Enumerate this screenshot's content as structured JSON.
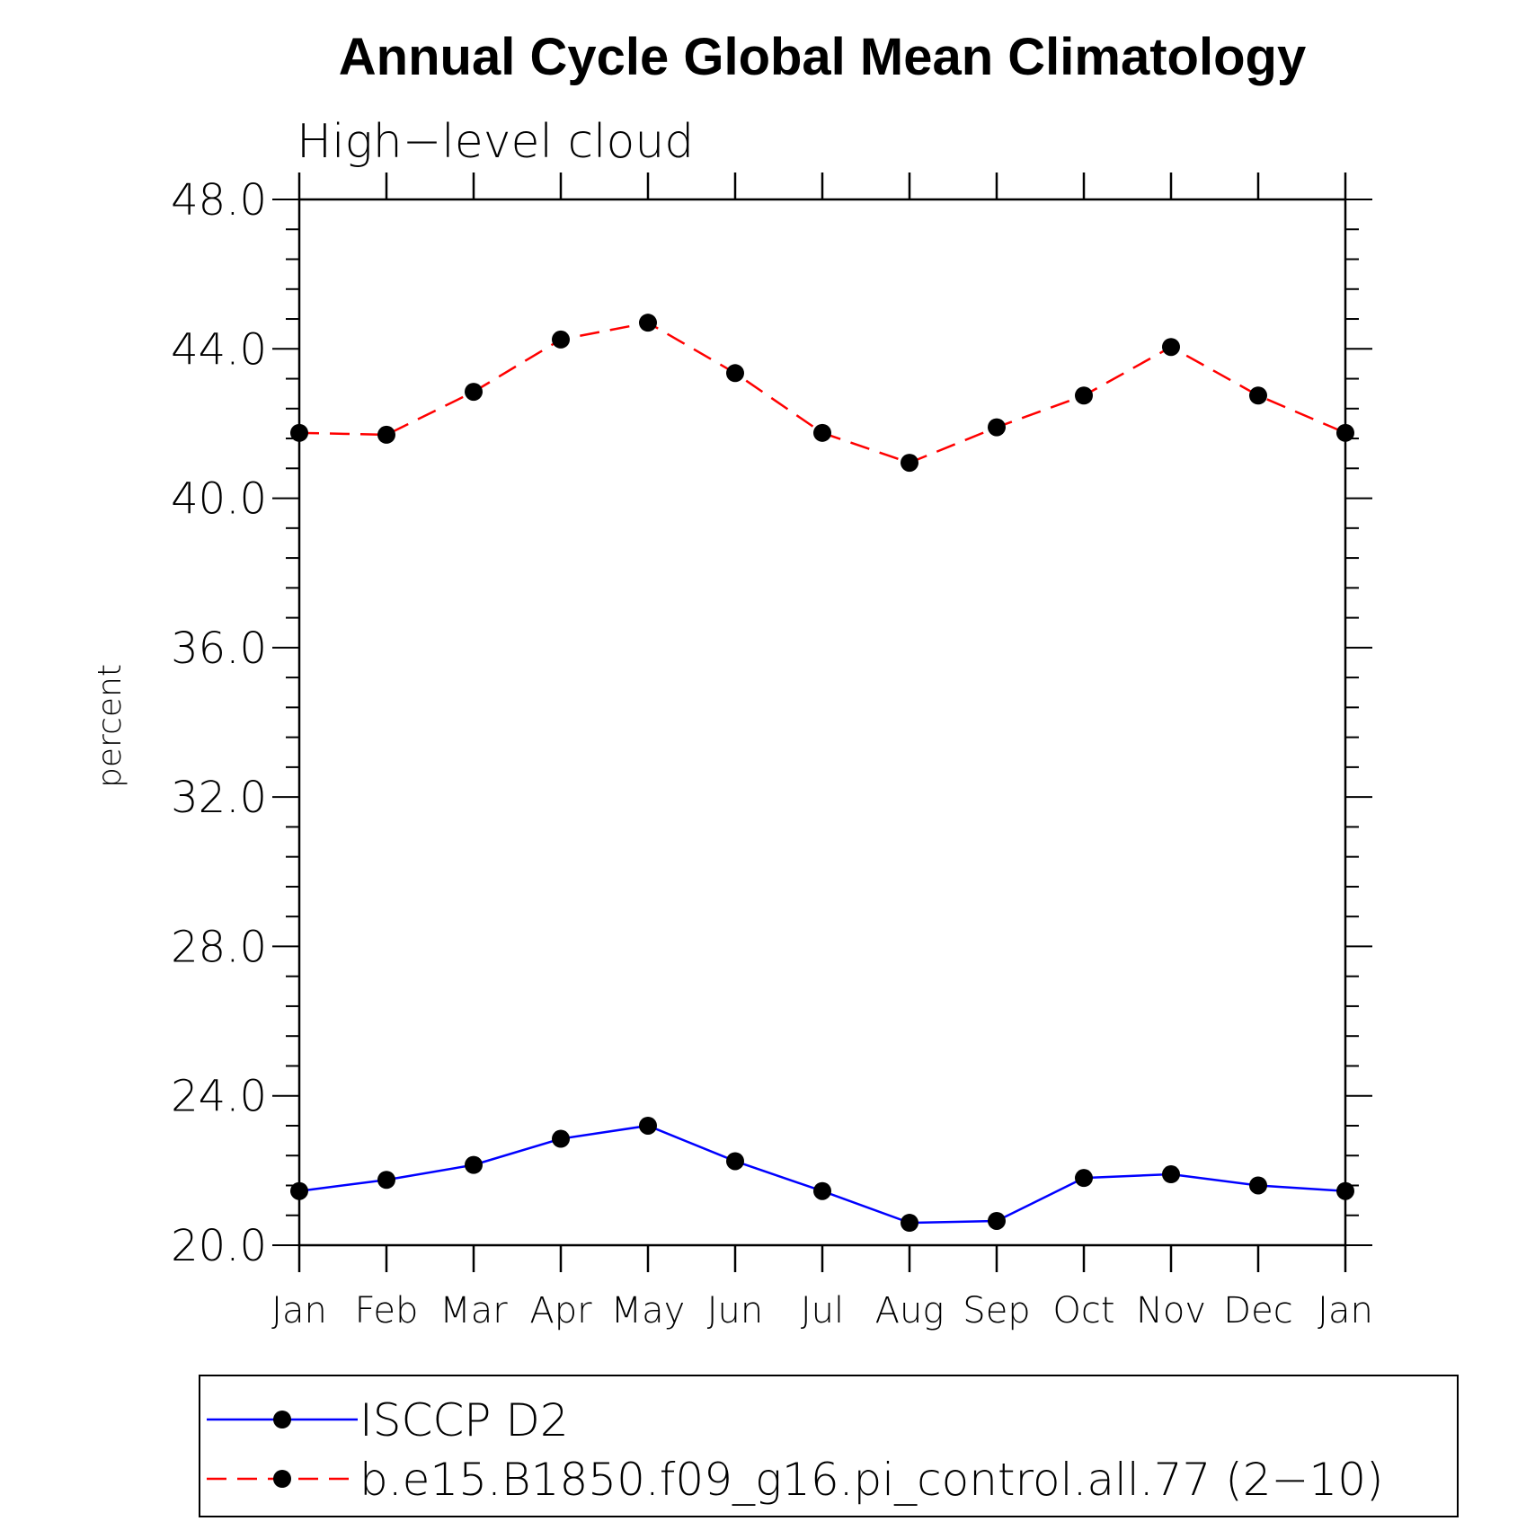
{
  "chart_data": {
    "type": "line",
    "title": "Annual Cycle Global Mean Climatology",
    "subtitle": "High−level cloud",
    "xlabel": "",
    "ylabel": "percent",
    "categories": [
      "Jan",
      "Feb",
      "Mar",
      "Apr",
      "May",
      "Jun",
      "Jul",
      "Aug",
      "Sep",
      "Oct",
      "Nov",
      "Dec",
      "Jan"
    ],
    "ylim": [
      20.0,
      48.0
    ],
    "yticks": [
      "20.0",
      "24.0",
      "28.0",
      "32.0",
      "36.0",
      "40.0",
      "44.0",
      "48.0"
    ],
    "grid": false,
    "legend_position": "bottom",
    "series": [
      {
        "name": "ISCCP D2",
        "color": "#0000ff",
        "line_style": "solid",
        "marker": "filled-circle",
        "values": [
          21.45,
          21.75,
          22.15,
          22.85,
          23.2,
          22.25,
          21.45,
          20.6,
          20.65,
          21.8,
          21.9,
          21.6,
          21.45
        ]
      },
      {
        "name": "b.e15.B1850.f09_g16.pi_control.all.77 (2−10)",
        "color": "#ff0000",
        "line_style": "dashed",
        "marker": "filled-circle",
        "values": [
          41.75,
          41.7,
          42.85,
          44.25,
          44.7,
          43.35,
          41.75,
          40.95,
          41.9,
          42.75,
          44.05,
          42.75,
          41.75
        ]
      }
    ]
  }
}
